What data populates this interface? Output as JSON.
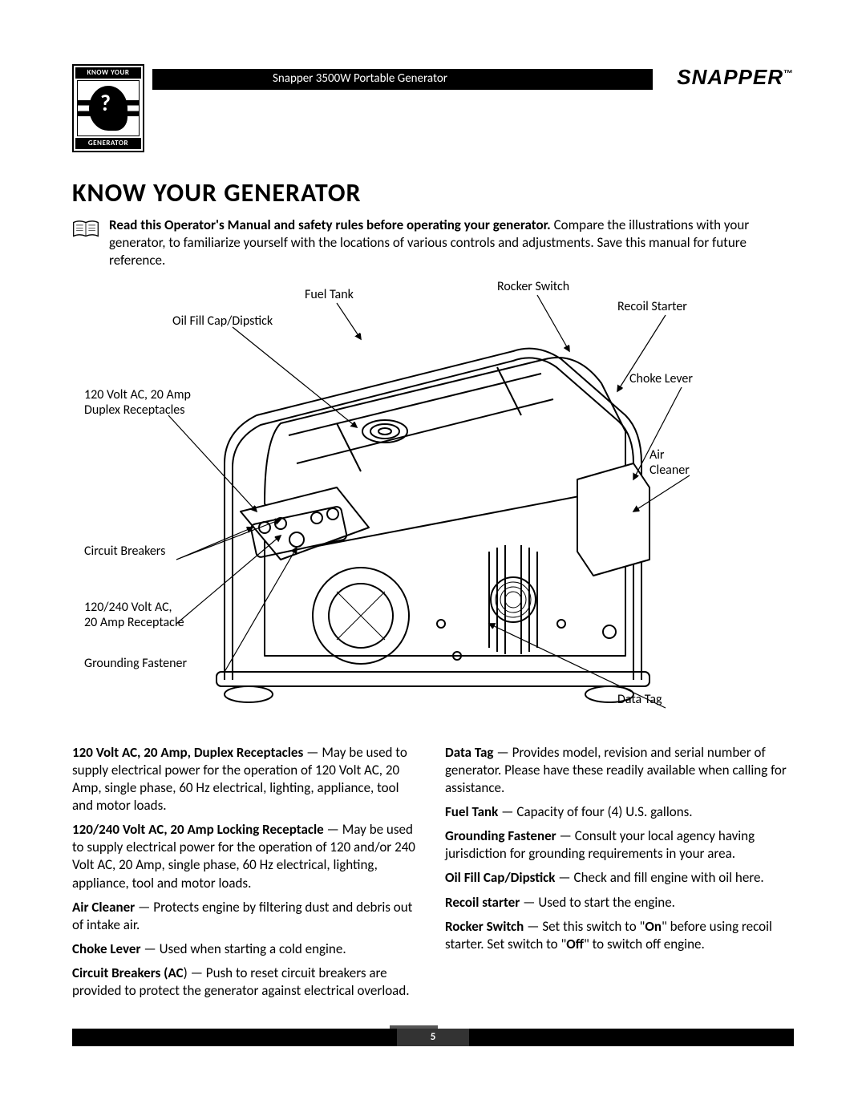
{
  "header": {
    "badge_top": "KNOW YOUR",
    "badge_bottom": "GENERATOR",
    "black_bar_text": "Snapper 3500W Portable Generator",
    "brand": "SNAPPER",
    "tm": "™"
  },
  "title": "Know Your Generator",
  "intro": {
    "bold": "Read this Operator's Manual and safety rules before operating your generator.",
    "rest": "Compare the illustrations with your generator, to familiarize yourself with the locations of various controls and adjustments. Save this manual for future reference."
  },
  "labels": {
    "fuel_tank": "Fuel Tank",
    "rocker_switch": "Rocker Switch",
    "recoil_starter": "Recoil Starter",
    "oil_fill": "Oil Fill Cap/Dipstick",
    "choke_lever": "Choke Lever",
    "duplex": "120 Volt AC, 20 Amp\nDuplex Receptacles",
    "air_cleaner": "Air\nCleaner",
    "circuit_breakers": "Circuit Breakers",
    "receptacle_240": "120/240 Volt AC,\n20 Amp Receptacle",
    "grounding": "Grounding Fastener",
    "data_tag": "Data Tag"
  },
  "left_col": [
    {
      "b": "120 Volt AC, 20 Amp, Duplex Receptacles",
      "t": " — May be used to supply electrical power for the operation of 120 Volt AC, 20 Amp, single phase, 60 Hz electrical, lighting, appliance, tool and motor loads."
    },
    {
      "b": "120/240 Volt AC, 20 Amp Locking Receptacle",
      "t": " — May be used to supply electrical power for the operation of 120 and/or 240 Volt AC, 20 Amp, single phase, 60 Hz electrical, lighting, appliance, tool and motor loads."
    },
    {
      "b": "Air Cleaner",
      "t": " — Protects engine by filtering dust and debris out of intake air."
    },
    {
      "b": "Choke Lever",
      "t": " — Used when starting a cold engine."
    },
    {
      "b": "Circuit Breakers (AC",
      "t": ") — Push to reset circuit breakers are provided to protect the generator against electrical overload."
    }
  ],
  "right_col": [
    {
      "b": "Data Tag",
      "t": " — Provides model, revision and serial number of generator. Please have these readily available when calling for assistance."
    },
    {
      "b": "Fuel Tank",
      "t": " — Capacity of four (4) U.S. gallons."
    },
    {
      "b": "Grounding Fastener",
      "t": " — Consult your local agency having jurisdiction for grounding requirements in your area."
    },
    {
      "b": "Oil Fill Cap/Dipstick",
      "t": " — Check and fill engine with oil here."
    },
    {
      "b": "Recoil starter",
      "t": " — Used to start the engine."
    },
    {
      "b": "Rocker Switch",
      "html": " — Set this switch to \"<b>On</b>\" before using recoil starter. Set switch to \"<b>Off</b>\" to switch off engine."
    }
  ],
  "page_number": "5",
  "colors": {
    "ink": "#000000",
    "paper": "#ffffff"
  }
}
